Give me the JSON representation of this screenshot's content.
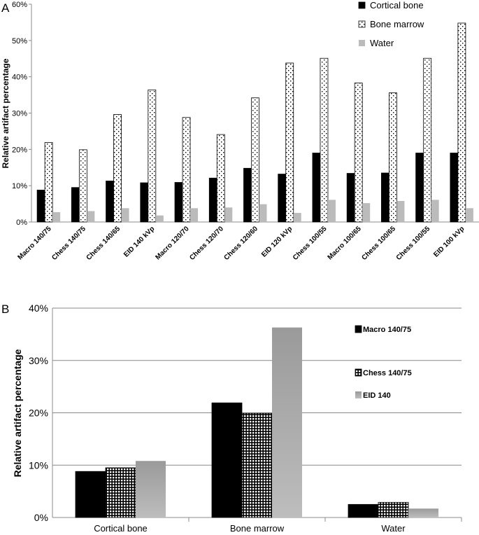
{
  "chart_data": [
    {
      "panel": "A",
      "type": "bar",
      "ylabel": "Relative artifact percentage",
      "ylim": [
        0,
        60
      ],
      "yticks": [
        "0%",
        "10%",
        "20%",
        "30%",
        "40%",
        "50%",
        "60%"
      ],
      "categories": [
        "Macro 140/75",
        "Chess 140/75",
        "Chess 140/65",
        "EID 140 kVp",
        "Macro 120/70",
        "Chess 120/70",
        "Chess 120/60",
        "EID 120 kVp",
        "Chess 100/55",
        "Macro 100/65",
        "Chess 100/65",
        "Chess 100/55",
        "EID 100 kVp"
      ],
      "series": [
        {
          "name": "Cortical bone",
          "values": [
            8.8,
            9.5,
            11.3,
            10.8,
            10.9,
            12.1,
            14.8,
            13.2,
            19.0,
            13.4,
            13.5,
            19.0,
            19.0
          ]
        },
        {
          "name": "Bone marrow",
          "values": [
            21.9,
            19.9,
            29.6,
            36.4,
            28.8,
            24.1,
            34.2,
            43.8,
            45.1,
            38.3,
            35.6,
            45.1,
            54.8
          ]
        },
        {
          "name": "Water",
          "values": [
            2.7,
            3.0,
            3.8,
            1.8,
            3.8,
            4.0,
            4.9,
            2.5,
            6.1,
            5.2,
            5.8,
            6.1,
            3.8
          ]
        }
      ]
    },
    {
      "panel": "B",
      "type": "bar",
      "ylabel": "Relative artifact percentage",
      "ylim": [
        0,
        40
      ],
      "yticks": [
        "0%",
        "10%",
        "20%",
        "30%",
        "40%"
      ],
      "categories": [
        "Cortical bone",
        "Bone marrow",
        "Water"
      ],
      "series": [
        {
          "name": "Macro 140/75",
          "values": [
            8.8,
            21.9,
            2.5
          ]
        },
        {
          "name": "Chess 140/75",
          "values": [
            9.5,
            19.9,
            2.9
          ]
        },
        {
          "name": "EID 140",
          "values": [
            10.8,
            36.3,
            1.7
          ]
        }
      ]
    }
  ],
  "panel_labels": {
    "a": "A",
    "b": "B"
  },
  "colors": {
    "black": "#000000",
    "grey_light": "#bbbbbb",
    "grey_mid": "#a8a8a8",
    "axis": "#8c8c8c",
    "grid": "#888888"
  }
}
